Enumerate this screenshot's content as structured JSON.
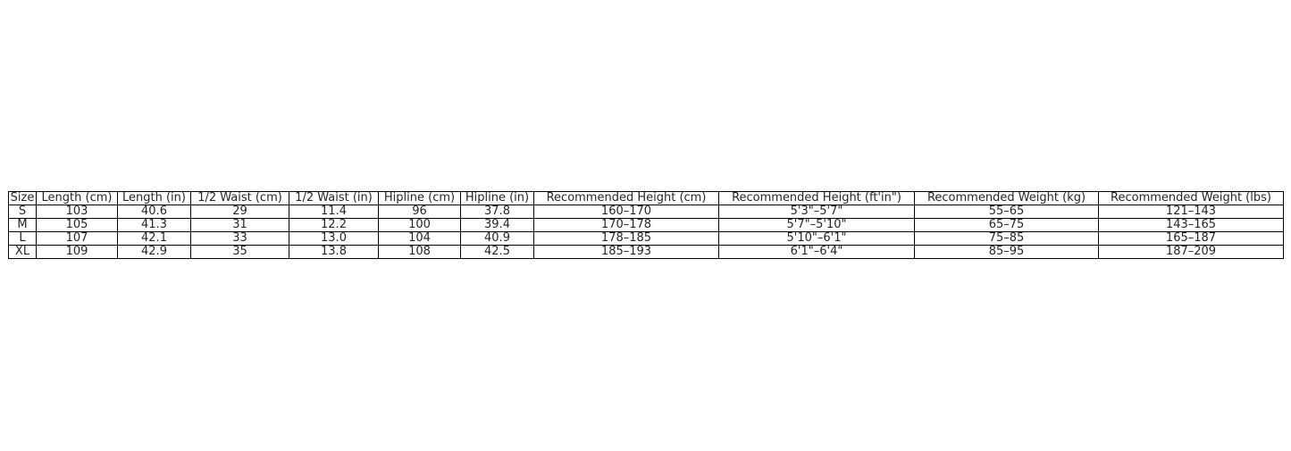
{
  "table": {
    "headers": [
      "Size",
      "Length (cm)",
      "Length (in)",
      "1/2 Waist (cm)",
      "1/2 Waist (in)",
      "Hipline (cm)",
      "Hipline (in)",
      "Recommended Height (cm)",
      "Recommended Height (ft'in\")",
      "Recommended Weight (kg)",
      "Recommended Weight (lbs)"
    ],
    "rows": [
      [
        "S",
        "103",
        "40.6",
        "29",
        "11.4",
        "96",
        "37.8",
        "160–170",
        "5'3\"–5'7\"",
        "55–65",
        "121–143"
      ],
      [
        "M",
        "105",
        "41.3",
        "31",
        "12.2",
        "100",
        "39.4",
        "170–178",
        "5'7\"–5'10\"",
        "65–75",
        "143–165"
      ],
      [
        "L",
        "107",
        "42.1",
        "33",
        "13.0",
        "104",
        "40.9",
        "178–185",
        "5'10\"–6'1\"",
        "75–85",
        "165–187"
      ],
      [
        "XL",
        "109",
        "42.9",
        "35",
        "13.8",
        "108",
        "42.5",
        "185–193",
        "6'1\"–6'4\"",
        "85–95",
        "187–209"
      ]
    ]
  }
}
